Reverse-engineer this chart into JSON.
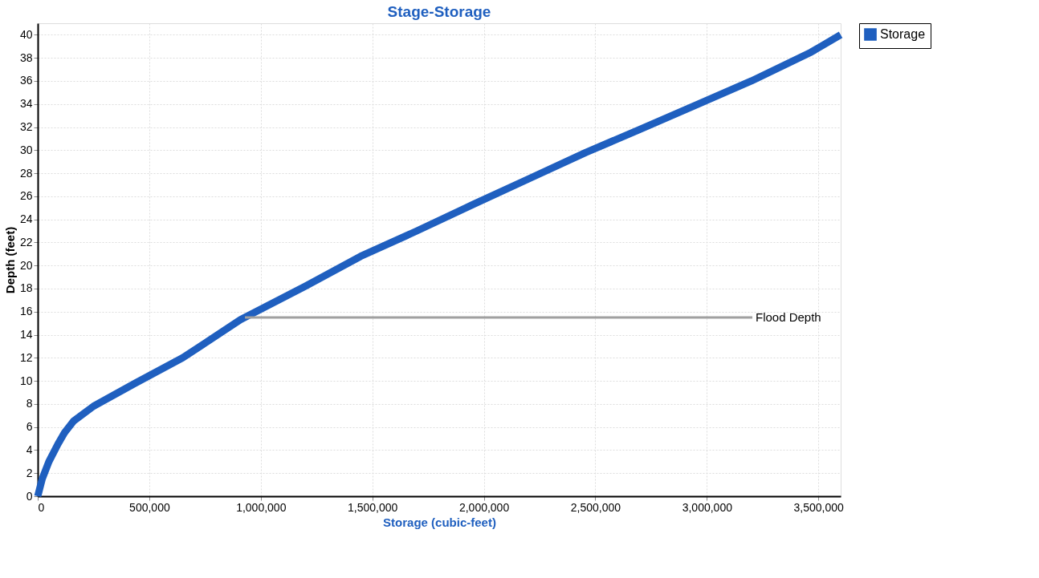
{
  "chart_data": {
    "type": "line",
    "title": "Stage-Storage",
    "xlabel": "Storage (cubic-feet)",
    "ylabel": "Depth  (feet)",
    "x": [
      0,
      20000,
      50000,
      90000,
      120000,
      160000,
      250000,
      437000,
      650000,
      909000,
      1200000,
      1448000,
      1700000,
      1953000,
      2200000,
      2458000,
      2700000,
      2963000,
      3200000,
      3468000,
      3600000
    ],
    "series": [
      {
        "name": "Storage",
        "color": "#1f5fbf",
        "values": [
          0,
          1.5,
          3,
          4.5,
          5.5,
          6.5,
          7.8,
          9.8,
          12,
          15.3,
          18.2,
          20.8,
          23,
          25.3,
          27.5,
          29.8,
          31.8,
          34,
          36,
          38.5,
          40
        ]
      }
    ],
    "xlim": [
      0,
      3600000
    ],
    "xticks": [
      {
        "value": 0,
        "label": "0"
      },
      {
        "value": 500000,
        "label": "500,000"
      },
      {
        "value": 1000000,
        "label": "1,000,000"
      },
      {
        "value": 1500000,
        "label": "1,500,000"
      },
      {
        "value": 2000000,
        "label": "2,000,000"
      },
      {
        "value": 2500000,
        "label": "2,500,000"
      },
      {
        "value": 3000000,
        "label": "3,000,000"
      },
      {
        "value": 3500000,
        "label": "3,500,000"
      }
    ],
    "ylim": [
      0,
      41
    ],
    "yticks": [
      0,
      2,
      4,
      6,
      8,
      10,
      12,
      14,
      16,
      18,
      20,
      22,
      24,
      26,
      28,
      30,
      32,
      34,
      36,
      38,
      40
    ],
    "ref_lines": [
      {
        "axis": "y",
        "value": 15.5,
        "label": "Flood Depth",
        "color": "#a0a0a0"
      }
    ],
    "grid": true,
    "legend": "top right",
    "marker": "none",
    "line_style": "solid"
  }
}
